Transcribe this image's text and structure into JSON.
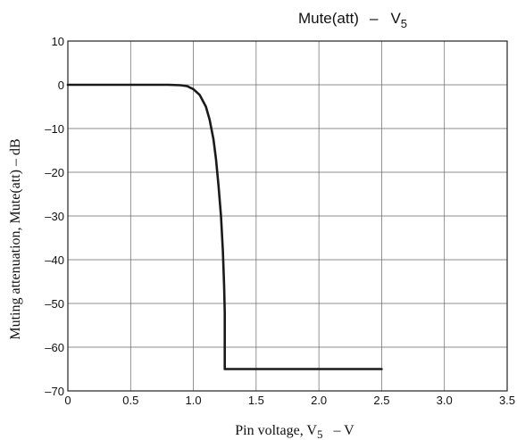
{
  "chart_data": {
    "type": "line",
    "title": {
      "main": "Mute(att)",
      "dash": "–",
      "var": "V",
      "sub": "5"
    },
    "xlabel": {
      "main": "Pin voltage, V",
      "sub": "5",
      "unit": "–  V"
    },
    "ylabel": "Muting attenuation, Mute(att)  –  dB",
    "xlim": [
      0,
      3.5
    ],
    "ylim": [
      -70,
      10
    ],
    "x_ticks": [
      0,
      0.5,
      1.0,
      1.5,
      2.0,
      2.5,
      3.0,
      3.5
    ],
    "x_tick_labels": [
      "0",
      "0.5",
      "1.0",
      "1.5",
      "2.0",
      "2.5",
      "3.0",
      "3.5"
    ],
    "y_ticks": [
      10,
      0,
      -10,
      -20,
      -30,
      -40,
      -50,
      -60,
      -70
    ],
    "y_tick_labels": [
      "10",
      "0",
      "–10",
      "–20",
      "–30",
      "–40",
      "–50",
      "–60",
      "–70"
    ],
    "grid": true,
    "series": [
      {
        "x": [
          0,
          0.5,
          0.8,
          0.9,
          0.95,
          1.0,
          1.05,
          1.1,
          1.13,
          1.16,
          1.18,
          1.2,
          1.22,
          1.235,
          1.245,
          1.25,
          1.25,
          1.5,
          2.0,
          2.5
        ],
        "y": [
          0,
          0,
          0,
          -0.1,
          -0.3,
          -1,
          -2.3,
          -5,
          -8,
          -12.5,
          -17,
          -23,
          -30,
          -38,
          -46,
          -52,
          -65,
          -65,
          -65,
          -65
        ]
      }
    ],
    "colors": {
      "line": "#1a1a1a",
      "grid": "#666666",
      "frame": "#222222"
    }
  }
}
